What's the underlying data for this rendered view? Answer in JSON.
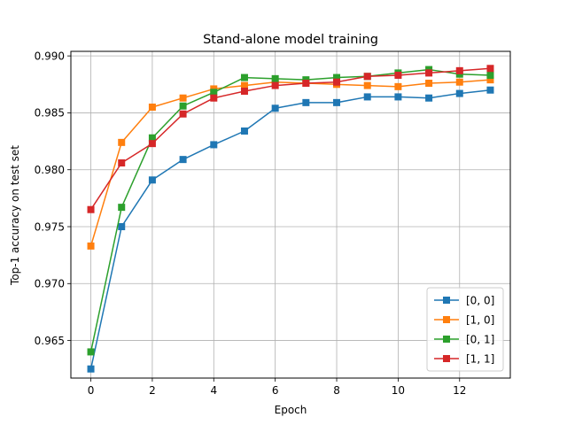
{
  "chart_data": {
    "type": "line",
    "title": "Stand-alone model training",
    "xlabel": "Epoch",
    "ylabel": "Top-1 accuracy on test set",
    "xlim": [
      -0.65,
      13.65
    ],
    "ylim": [
      0.9617,
      0.9904
    ],
    "xticks": [
      0,
      2,
      4,
      6,
      8,
      10,
      12
    ],
    "yticks": [
      0.965,
      0.97,
      0.975,
      0.98,
      0.985,
      0.99
    ],
    "xtick_labels": [
      "0",
      "2",
      "4",
      "6",
      "8",
      "10",
      "12"
    ],
    "ytick_labels": [
      "0.965",
      "0.970",
      "0.975",
      "0.980",
      "0.985",
      "0.990"
    ],
    "grid": true,
    "legend_position": "lower-right",
    "marker": "square",
    "x": [
      0,
      1,
      2,
      3,
      4,
      5,
      6,
      7,
      8,
      9,
      10,
      11,
      12,
      13
    ],
    "series": [
      {
        "name": "[0, 0]",
        "color": "#1f77b4",
        "values": [
          0.9625,
          0.975,
          0.9791,
          0.9809,
          0.9822,
          0.9834,
          0.9854,
          0.9859,
          0.9859,
          0.9864,
          0.9864,
          0.9863,
          0.9867,
          0.987
        ]
      },
      {
        "name": "[1, 0]",
        "color": "#ff7f0e",
        "values": [
          0.9733,
          0.9824,
          0.9855,
          0.9863,
          0.9871,
          0.9874,
          0.9877,
          0.9876,
          0.9875,
          0.9874,
          0.9873,
          0.9876,
          0.9877,
          0.9879
        ]
      },
      {
        "name": "[0, 1]",
        "color": "#2ca02c",
        "values": [
          0.964,
          0.9767,
          0.9828,
          0.9856,
          0.9868,
          0.9881,
          0.988,
          0.9879,
          0.9881,
          0.9882,
          0.9885,
          0.9888,
          0.9884,
          0.9883
        ]
      },
      {
        "name": "[1, 1]",
        "color": "#d62728",
        "values": [
          0.9765,
          0.9806,
          0.9823,
          0.9849,
          0.9863,
          0.9869,
          0.9874,
          0.9876,
          0.9877,
          0.9882,
          0.9883,
          0.9885,
          0.9887,
          0.9889
        ]
      }
    ]
  }
}
